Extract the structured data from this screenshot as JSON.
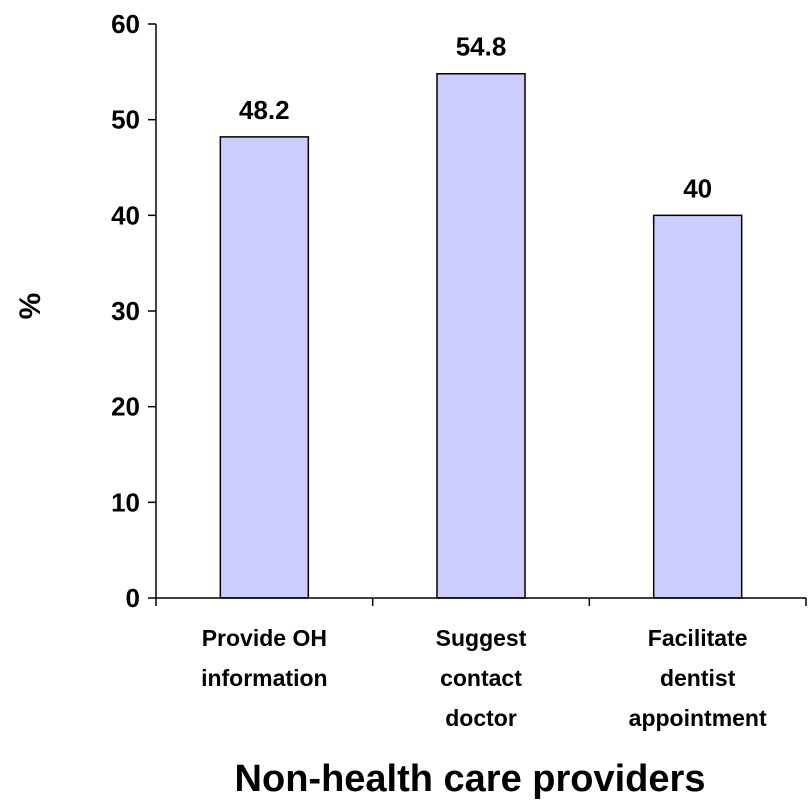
{
  "chart_data": {
    "type": "bar",
    "categories": [
      [
        "Provide OH",
        "information"
      ],
      [
        "Suggest",
        "contact",
        "doctor"
      ],
      [
        "Facilitate",
        "dentist",
        "appointment"
      ]
    ],
    "values": [
      48.2,
      54.8,
      40
    ],
    "value_labels": [
      "48.2",
      "54.8",
      "40"
    ],
    "ylabel": "%",
    "xlabel": "Non-health care providers",
    "ylim": [
      0,
      60
    ],
    "yticks": [
      0,
      10,
      20,
      30,
      40,
      50,
      60
    ],
    "grid": false,
    "legend": "none",
    "bar_color": "#ccccff",
    "bar_edge_color": "#000000"
  }
}
